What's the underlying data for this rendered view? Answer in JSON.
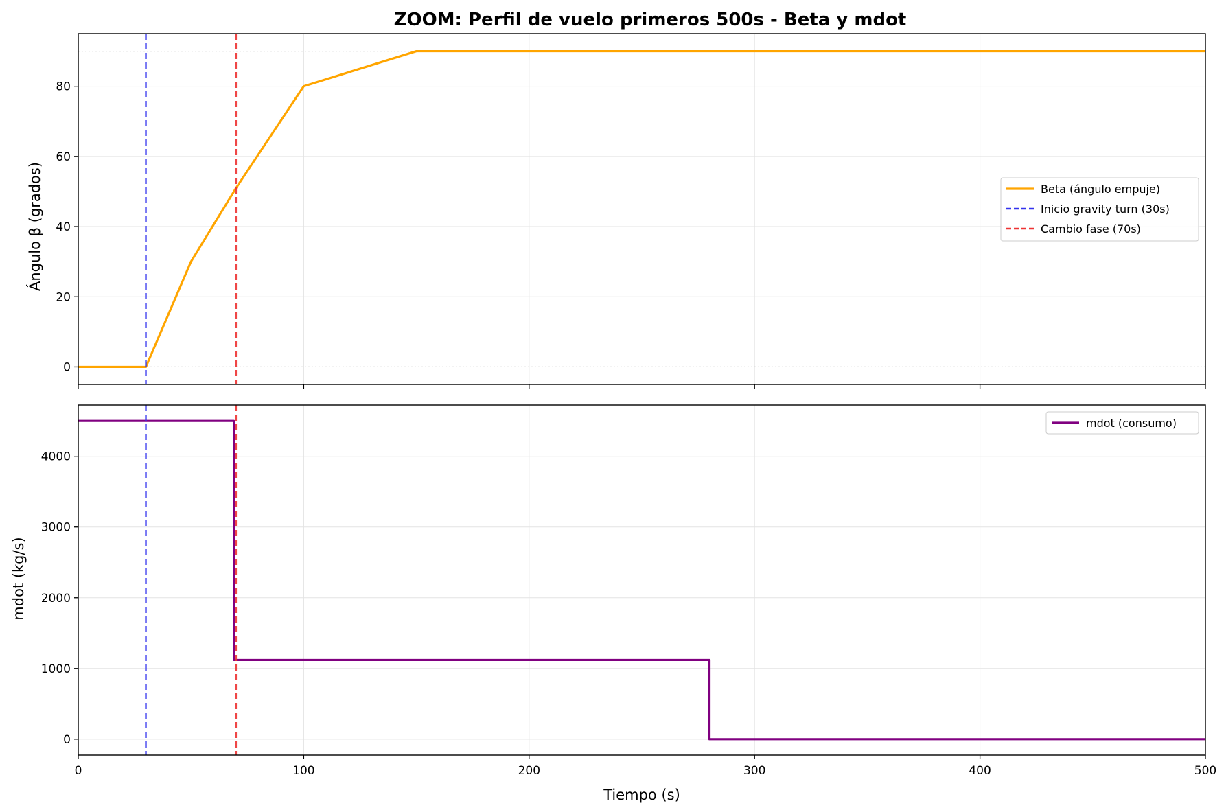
{
  "chart_data": [
    {
      "type": "line",
      "title": "ZOOM: Perfil de vuelo primeros 500s - Beta y mdot",
      "xlabel": "",
      "ylabel": "Ángulo β (grados)",
      "xlim": [
        0,
        500
      ],
      "ylim": [
        -5,
        95
      ],
      "x_ticks": [
        0,
        100,
        200,
        300,
        400,
        500
      ],
      "y_ticks": [
        0,
        20,
        40,
        60,
        80
      ],
      "grid": true,
      "legend_position": "center-right",
      "series": [
        {
          "name": "Beta (ángulo empuje)",
          "color": "#FFA500",
          "style": "solid",
          "x": [
            0,
            30,
            50,
            70,
            100,
            150,
            500
          ],
          "y": [
            0,
            0,
            30,
            51,
            80,
            90,
            90
          ]
        }
      ],
      "vlines": [
        {
          "name": "Inicio gravity turn (30s)",
          "x": 30,
          "color": "#3333EE",
          "style": "dashed"
        },
        {
          "name": "Cambio fase (70s)",
          "x": 70,
          "color": "#EE3333",
          "style": "dashed"
        }
      ],
      "hlines": [
        {
          "y": 90,
          "color": "#999999",
          "style": "dotted"
        },
        {
          "y": 0,
          "color": "#999999",
          "style": "dotted"
        }
      ]
    },
    {
      "type": "line",
      "xlabel": "Tiempo (s)",
      "ylabel": "mdot (kg/s)",
      "xlim": [
        0,
        500
      ],
      "ylim": [
        -225,
        4725
      ],
      "x_ticks": [
        0,
        100,
        200,
        300,
        400,
        500
      ],
      "x_tick_labels": [
        "0",
        "100",
        "200",
        "300",
        "400",
        "500"
      ],
      "y_ticks": [
        0,
        1000,
        2000,
        3000,
        4000
      ],
      "grid": true,
      "legend_position": "top-right",
      "series": [
        {
          "name": "mdot (consumo)",
          "color": "#800080",
          "style": "solid",
          "x": [
            0,
            69,
            69,
            70,
            280,
            280,
            500
          ],
          "y": [
            4500,
            4500,
            1120,
            1120,
            1120,
            0,
            0
          ]
        }
      ],
      "vlines": [
        {
          "x": 30,
          "color": "#3333EE",
          "style": "dashed"
        },
        {
          "x": 70,
          "color": "#EE3333",
          "style": "dashed"
        }
      ]
    }
  ]
}
